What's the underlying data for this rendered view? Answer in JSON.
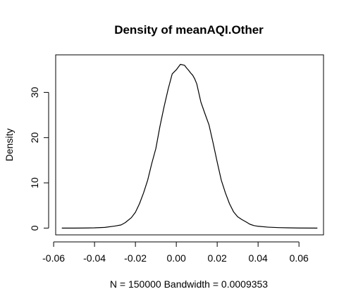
{
  "chart_data": {
    "type": "line",
    "title": "Density of meanAQI.Other",
    "xlabel": "N = 150000   Bandwidth = 0.0009353",
    "ylabel": "Density",
    "xlim": [
      -0.059,
      0.072
    ],
    "ylim": [
      -1.5,
      38.3
    ],
    "x_ticks": [
      -0.06,
      -0.04,
      -0.02,
      0.0,
      0.02,
      0.04,
      0.06
    ],
    "x_tick_labels": [
      "-0.06",
      "-0.04",
      "-0.02",
      "0.00",
      "0.02",
      "0.04",
      "0.06"
    ],
    "y_ticks": [
      0,
      10,
      20,
      30
    ],
    "y_tick_labels": [
      "0",
      "10",
      "20",
      "30"
    ],
    "grid": false,
    "legend": "none",
    "series": [
      {
        "color": "#000000",
        "x": [
          -0.056,
          -0.05,
          -0.045,
          -0.04,
          -0.035,
          -0.03,
          -0.027,
          -0.025,
          -0.022,
          -0.02,
          -0.018,
          -0.016,
          -0.014,
          -0.012,
          -0.01,
          -0.008,
          -0.006,
          -0.004,
          -0.002,
          0.0,
          0.002,
          0.004,
          0.005,
          0.006,
          0.007,
          0.008,
          0.009,
          0.01,
          0.012,
          0.014,
          0.016,
          0.018,
          0.02,
          0.022,
          0.024,
          0.026,
          0.028,
          0.03,
          0.032,
          0.034,
          0.036,
          0.038,
          0.04,
          0.045,
          0.05,
          0.055,
          0.06,
          0.069
        ],
        "y": [
          0.0,
          0.0,
          0.02,
          0.05,
          0.15,
          0.45,
          0.7,
          1.2,
          2.3,
          3.5,
          5.4,
          7.8,
          10.6,
          14.3,
          17.6,
          22.5,
          26.8,
          30.7,
          34.1,
          35.0,
          36.2,
          36.0,
          35.4,
          34.9,
          34.3,
          33.8,
          33.0,
          31.9,
          27.9,
          25.3,
          22.8,
          18.8,
          14.6,
          10.6,
          7.8,
          5.4,
          3.6,
          2.5,
          1.9,
          1.4,
          0.85,
          0.55,
          0.4,
          0.2,
          0.1,
          0.05,
          0.02,
          0.0
        ]
      }
    ]
  }
}
